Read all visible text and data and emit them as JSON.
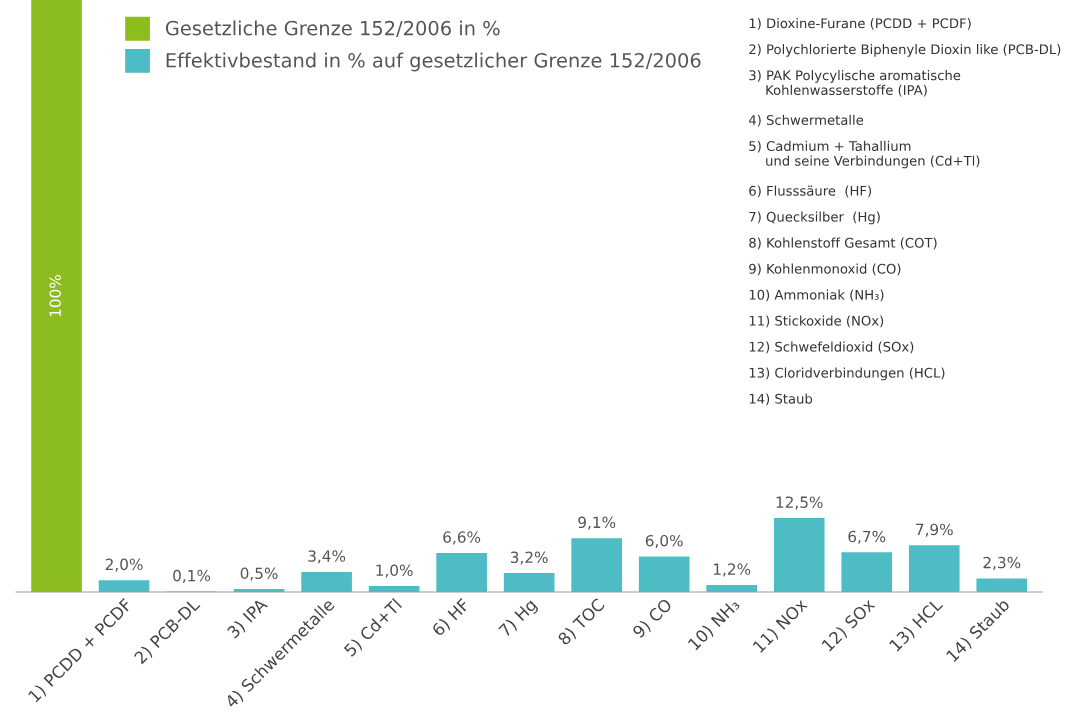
{
  "chart_data": {
    "type": "bar",
    "categories": [
      null,
      "1) PCDD + PCDF",
      "2) PCB-DL",
      "3) IPA",
      "4) Schwermetalle",
      "5) Cd+Tl",
      "6) HF",
      "7) Hg",
      "8) TOC",
      "9) CO",
      "10) NH₃",
      "11) NOx",
      "12) SOx",
      "13) HCL",
      "14) Staub"
    ],
    "series": [
      {
        "name": "Gesetzliche Grenze 152/2006 in %",
        "color": "#8cbd1e",
        "values": [
          100,
          null,
          null,
          null,
          null,
          null,
          null,
          null,
          null,
          null,
          null,
          null,
          null,
          null,
          null
        ],
        "value_labels": [
          "100%",
          null,
          null,
          null,
          null,
          null,
          null,
          null,
          null,
          null,
          null,
          null,
          null,
          null,
          null
        ]
      },
      {
        "name": "Effektivbestand in % auf gesetzlicher Grenze 152/2006",
        "color": "#4dbcc4",
        "values": [
          null,
          2.0,
          0.1,
          0.5,
          3.4,
          1.0,
          6.6,
          3.2,
          9.1,
          6.0,
          1.2,
          12.5,
          6.7,
          7.9,
          2.3
        ],
        "value_labels": [
          null,
          "2,0%",
          "0,1%",
          "0,5%",
          "3,4%",
          "1,0%",
          "6,6%",
          "3,2%",
          "9,1%",
          "6,0%",
          "1,2%",
          "12,5%",
          "6,7%",
          "7,9%",
          "2,3%"
        ]
      }
    ],
    "legend": "top left",
    "grid": false,
    "annotations": [
      "1) Dioxine-Furane (PCDD + PCDF)",
      "2) Polychlorierte Biphenyle Dioxin like (PCB-DL)",
      "3) PAK Polycylische aromatische\n    Kohlenwasserstoffe (IPA)",
      "4) Schwermetalle",
      "5) Cadmium + Tahallium\n    und seine Verbindungen (Cd+Tl)",
      "6) Flusssäure  (HF)",
      "7) Quecksilber  (Hg)",
      "8) Kohlenstoff Gesamt (COT)",
      "9) Kohlenmonoxid (CO)",
      "10) Ammoniak (NH₃)",
      "11) Stickoxide (NOx)",
      "12) Schwefeldioxid (SOx)",
      "13) Cloridverbindungen (HCL)",
      "14) Staub"
    ]
  }
}
